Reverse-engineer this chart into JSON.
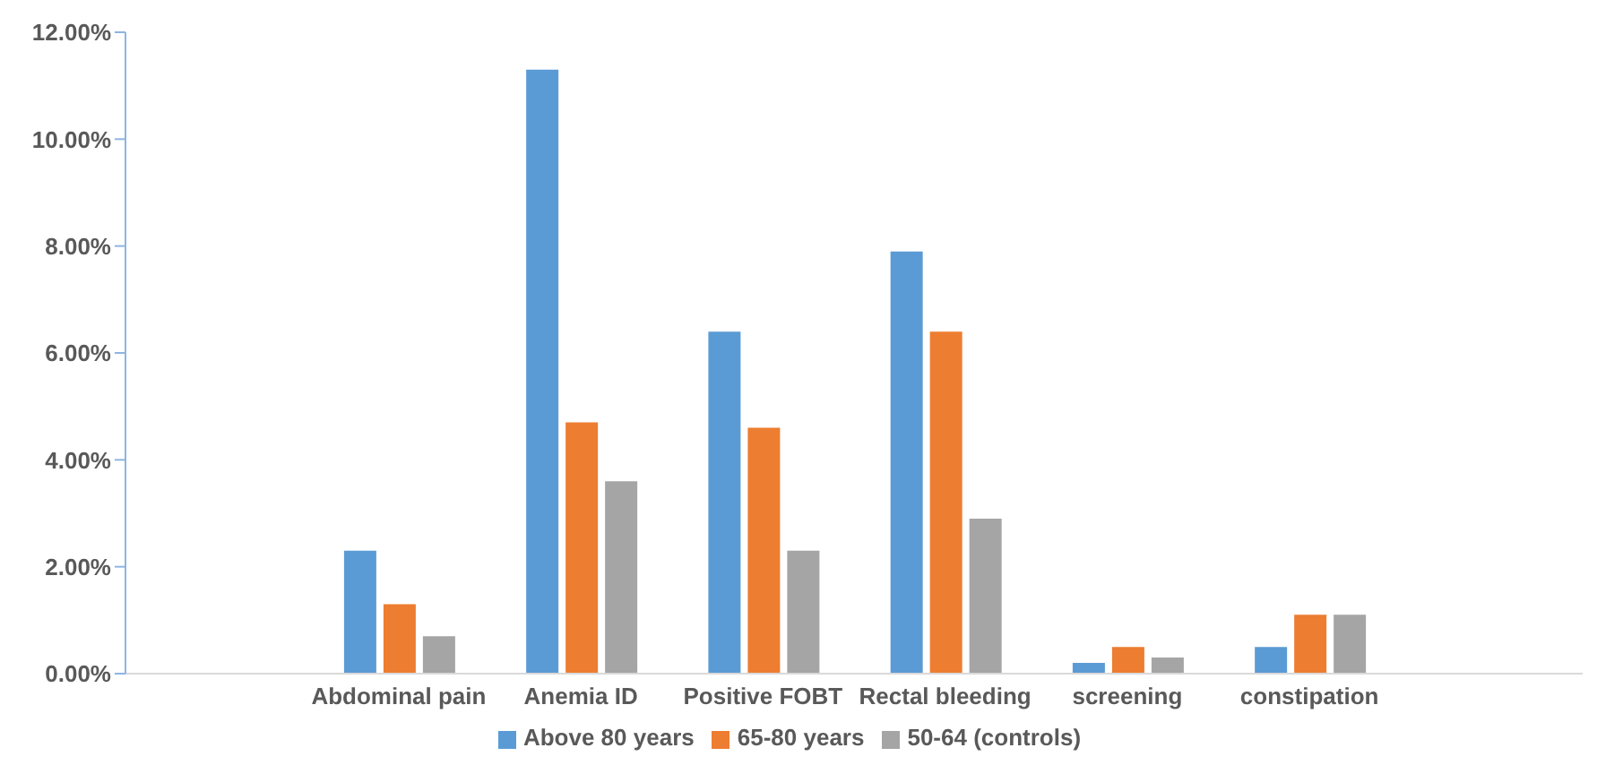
{
  "chart_data": {
    "type": "bar",
    "categories": [
      null,
      "Abdominal pain",
      "Anemia ID",
      "Positive FOBT",
      "Rectal bleeding",
      "screening",
      "constipation",
      null
    ],
    "series": [
      {
        "name": "Above 80 years",
        "color": "#5b9bd5",
        "values": [
          null,
          2.3,
          11.3,
          6.4,
          7.9,
          0.2,
          0.5,
          null
        ]
      },
      {
        "name": "65-80 years",
        "color": "#ed7d31",
        "values": [
          null,
          1.3,
          4.7,
          4.6,
          6.4,
          0.5,
          1.1,
          null
        ]
      },
      {
        "name": "50-64 (controls)",
        "color": "#a5a5a5",
        "values": [
          null,
          0.7,
          3.6,
          2.3,
          2.9,
          0.3,
          1.1,
          null
        ]
      }
    ],
    "ylim": [
      0,
      12
    ],
    "yticks": [
      {
        "value": 0,
        "label": "0.00%"
      },
      {
        "value": 2,
        "label": "2.00%"
      },
      {
        "value": 4,
        "label": "4.00%"
      },
      {
        "value": 6,
        "label": "6.00%"
      },
      {
        "value": 8,
        "label": "8.00%"
      },
      {
        "value": 10,
        "label": "10.00%"
      },
      {
        "value": 12,
        "label": "12.00%"
      }
    ],
    "grid": false,
    "legend": "bottom"
  }
}
